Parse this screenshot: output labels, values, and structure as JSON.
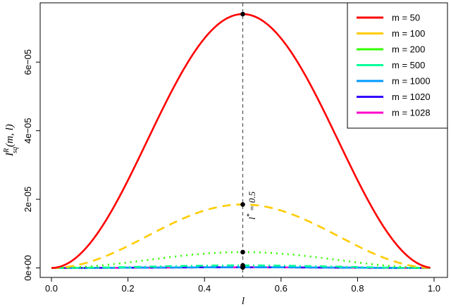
{
  "chart_data": {
    "type": "line",
    "title": "",
    "xlabel": "l",
    "ylabel": "I_sq^R(m, l)",
    "ylabel_parts": {
      "main": "I",
      "sup": "R",
      "sub": "sq",
      "args": "(m, l)"
    },
    "xlim": [
      0.0,
      1.0
    ],
    "ylim": [
      0,
      7.5e-05
    ],
    "xticks": [
      0.0,
      0.2,
      0.4,
      0.6,
      0.8,
      1.0
    ],
    "xtick_labels": [
      "0.0",
      "0.2",
      "0.4",
      "0.6",
      "0.8",
      "1.0"
    ],
    "yticks": [
      0,
      2e-05,
      4e-05,
      6e-05
    ],
    "ytick_labels": [
      "0e+00",
      "2e−05",
      "4e−05",
      "6e−05"
    ],
    "grid": false,
    "legend_position": "top-right",
    "vline_x": 0.5,
    "annotation": {
      "text": "l* = 0.5",
      "main": "l",
      "sup": "*",
      "rest": " = 0.5"
    },
    "series": [
      {
        "name": "m = 50",
        "color": "#ff0000",
        "style": "solid",
        "peak": 7.4e-05
      },
      {
        "name": "m = 100",
        "color": "#ffcc00",
        "style": "dashed",
        "peak": 1.85e-05
      },
      {
        "name": "m = 200",
        "color": "#33ff00",
        "style": "dotted",
        "peak": 4.6e-06
      },
      {
        "name": "m = 500",
        "color": "#00ff99",
        "style": "dotdash",
        "peak": 7.4e-07
      },
      {
        "name": "m = 1000",
        "color": "#0099ff",
        "style": "longdash",
        "peak": 1.85e-07
      },
      {
        "name": "m = 1020",
        "color": "#3300ff",
        "style": "twodash",
        "peak": 1.78e-07
      },
      {
        "name": "m = 1028",
        "color": "#ff00cc",
        "style": "solid",
        "peak": 1.75e-07
      }
    ],
    "curve_shape": "peak * sin(pi * l)^2",
    "x_range": [
      0.0,
      0.99
    ]
  }
}
